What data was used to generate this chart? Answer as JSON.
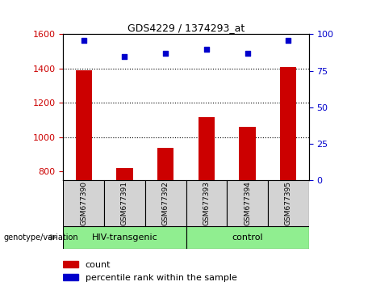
{
  "title": "GDS4229 / 1374293_at",
  "samples": [
    "GSM677390",
    "GSM677391",
    "GSM677392",
    "GSM677393",
    "GSM677394",
    "GSM677395"
  ],
  "bar_values": [
    1390,
    820,
    940,
    1115,
    1060,
    1410
  ],
  "percentile_values": [
    96,
    85,
    87,
    90,
    87,
    96
  ],
  "ylim_left": [
    750,
    1600
  ],
  "ylim_right": [
    0,
    100
  ],
  "yticks_left": [
    800,
    1000,
    1200,
    1400,
    1600
  ],
  "yticks_right": [
    0,
    25,
    50,
    75,
    100
  ],
  "bar_color": "#cc0000",
  "dot_color": "#0000cc",
  "grid_color": "#000000",
  "bar_bottom": 750,
  "group_label": "genotype/variation",
  "groups": [
    {
      "label": "HIV-transgenic",
      "color": "#90ee90"
    },
    {
      "label": "control",
      "color": "#90ee90"
    }
  ],
  "legend_count_label": "count",
  "legend_percentile_label": "percentile rank within the sample",
  "sample_box_color": "#d3d3d3",
  "fig_bg": "#ffffff",
  "bar_width": 0.4
}
